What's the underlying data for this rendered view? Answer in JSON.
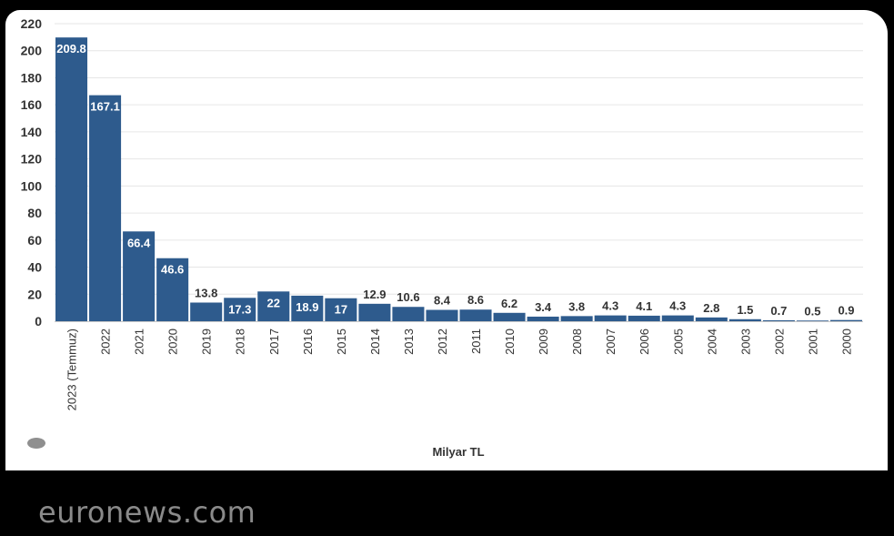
{
  "chart_data": {
    "type": "bar",
    "categories": [
      "2023 (Temmuz)",
      "2022",
      "2021",
      "2020",
      "2019",
      "2018",
      "2017",
      "2016",
      "2015",
      "2014",
      "2013",
      "2012",
      "2011",
      "2010",
      "2009",
      "2008",
      "2007",
      "2006",
      "2005",
      "2004",
      "2003",
      "2002",
      "2001",
      "2000"
    ],
    "values": [
      209.8,
      167.1,
      66.4,
      46.6,
      13.8,
      17.3,
      22,
      18.9,
      17,
      12.9,
      10.6,
      8.4,
      8.6,
      6.2,
      3.4,
      3.8,
      4.3,
      4.1,
      4.3,
      2.8,
      1.5,
      0.7,
      0.5,
      0.9
    ],
    "value_labels": [
      "209.8",
      "167.1",
      "66.4",
      "46.6",
      "13.8",
      "17.3",
      "22",
      "18.9",
      "17",
      "12.9",
      "10.6",
      "8.4",
      "8.6",
      "6.2",
      "3.4",
      "3.8",
      "4.3",
      "4.1",
      "4.3",
      "2.8",
      "1.5",
      "0.7",
      "0.5",
      "0.9"
    ],
    "yticks": [
      "0",
      "20",
      "40",
      "60",
      "80",
      "100",
      "120",
      "140",
      "160",
      "180",
      "200",
      "220"
    ],
    "ylim": [
      0,
      220
    ],
    "title": "",
    "xlabel": "Milyar TL",
    "ylabel": "",
    "grid": true,
    "bar_color": "#2e5b8d"
  },
  "footer": {
    "source": "euronews.com"
  }
}
